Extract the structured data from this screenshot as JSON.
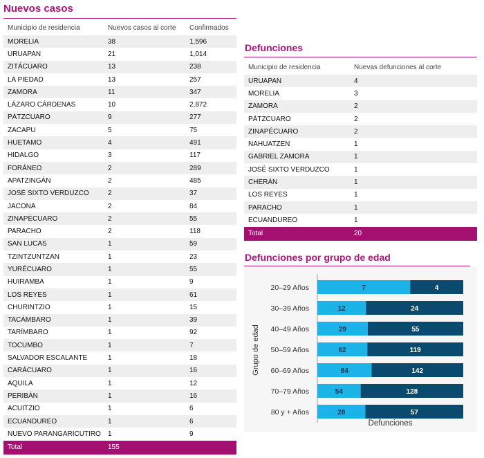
{
  "new_cases": {
    "title": "Nuevos casos",
    "headers": [
      "Municipio de residencia",
      "Nuevos casos al corte",
      "Confirmados"
    ],
    "rows": [
      [
        "MORELIA",
        "38",
        "1,596"
      ],
      [
        "URUAPAN",
        "21",
        "1,014"
      ],
      [
        "ZITÁCUARO",
        "13",
        "238"
      ],
      [
        "LA PIEDAD",
        "13",
        "257"
      ],
      [
        "ZAMORA",
        "11",
        "347"
      ],
      [
        "LÁZARO CÁRDENAS",
        "10",
        "2,872"
      ],
      [
        "PÁTZCUARO",
        "9",
        "277"
      ],
      [
        "ZACAPU",
        "5",
        "75"
      ],
      [
        "HUETAMO",
        "4",
        "491"
      ],
      [
        "HIDALGO",
        "3",
        "117"
      ],
      [
        "FORÁNEO",
        "2",
        "289"
      ],
      [
        "APATZINGÁN",
        "2",
        "485"
      ],
      [
        "JOSÉ SIXTO VERDUZCO",
        "2",
        "37"
      ],
      [
        "JACONA",
        "2",
        "84"
      ],
      [
        "ZINAPÉCUARO",
        "2",
        "55"
      ],
      [
        "PARACHO",
        "2",
        "118"
      ],
      [
        "SAN LUCAS",
        "1",
        "59"
      ],
      [
        "TZINTZUNTZAN",
        "1",
        "23"
      ],
      [
        "YURÉCUARO",
        "1",
        "55"
      ],
      [
        "HUIRAMBA",
        "1",
        "9"
      ],
      [
        "LOS REYES",
        "1",
        "61"
      ],
      [
        "CHURINTZIO",
        "1",
        "15"
      ],
      [
        "TACÁMBARO",
        "1",
        "39"
      ],
      [
        "TARÍMBARO",
        "1",
        "92"
      ],
      [
        "TOCUMBO",
        "1",
        "7"
      ],
      [
        "SALVADOR ESCALANTE",
        "1",
        "18"
      ],
      [
        "CARÁCUARO",
        "1",
        "16"
      ],
      [
        "AQUILA",
        "1",
        "12"
      ],
      [
        "PERIBÁN",
        "1",
        "16"
      ],
      [
        "ACUITZIO",
        "1",
        "6"
      ],
      [
        "ECUANDUREO",
        "1",
        "6"
      ],
      [
        "NUEVO PARANGARICUTIRO",
        "1",
        "9"
      ]
    ],
    "total_label": "Total",
    "total_value": "155"
  },
  "deaths": {
    "title": "Defunciones",
    "headers": [
      "Municipio de residencia",
      "Nuevas defunciones al corte"
    ],
    "rows": [
      [
        "URUAPAN",
        "4"
      ],
      [
        "MORELIA",
        "3"
      ],
      [
        "ZAMORA",
        "2"
      ],
      [
        "PÁTZCUARO",
        "2"
      ],
      [
        "ZINAPÉCUARO",
        "2"
      ],
      [
        "NAHUATZEN",
        "1"
      ],
      [
        "GABRIEL ZAMORA",
        "1"
      ],
      [
        "JOSÉ SIXTO VERDUZCO",
        "1"
      ],
      [
        "CHERÁN",
        "1"
      ],
      [
        "LOS REYES",
        "1"
      ],
      [
        "PARACHO",
        "1"
      ],
      [
        "ECUANDUREO",
        "1"
      ]
    ],
    "total_label": "Total",
    "total_value": "20"
  },
  "age_chart": {
    "title": "Defunciones por grupo de edad"
  },
  "chart_data": {
    "type": "bar",
    "orientation": "horizontal",
    "stacked": true,
    "title": "Defunciones por grupo de edad",
    "xlabel": "Defunciones",
    "ylabel": "Grupo de edad",
    "categories": [
      "20–29 Años",
      "30–39 Años",
      "40–49 Años",
      "50–59 Años",
      "60–69 Años",
      "70–79 Años",
      "80 y + Años"
    ],
    "series": [
      {
        "values": [
          7,
          12,
          29,
          62,
          84,
          54,
          28
        ],
        "color": "#1cb4e8"
      },
      {
        "values": [
          4,
          24,
          55,
          119,
          142,
          128,
          57
        ],
        "color": "#0a4a6e"
      }
    ],
    "normalized": true,
    "grid": false,
    "legend": "none"
  }
}
